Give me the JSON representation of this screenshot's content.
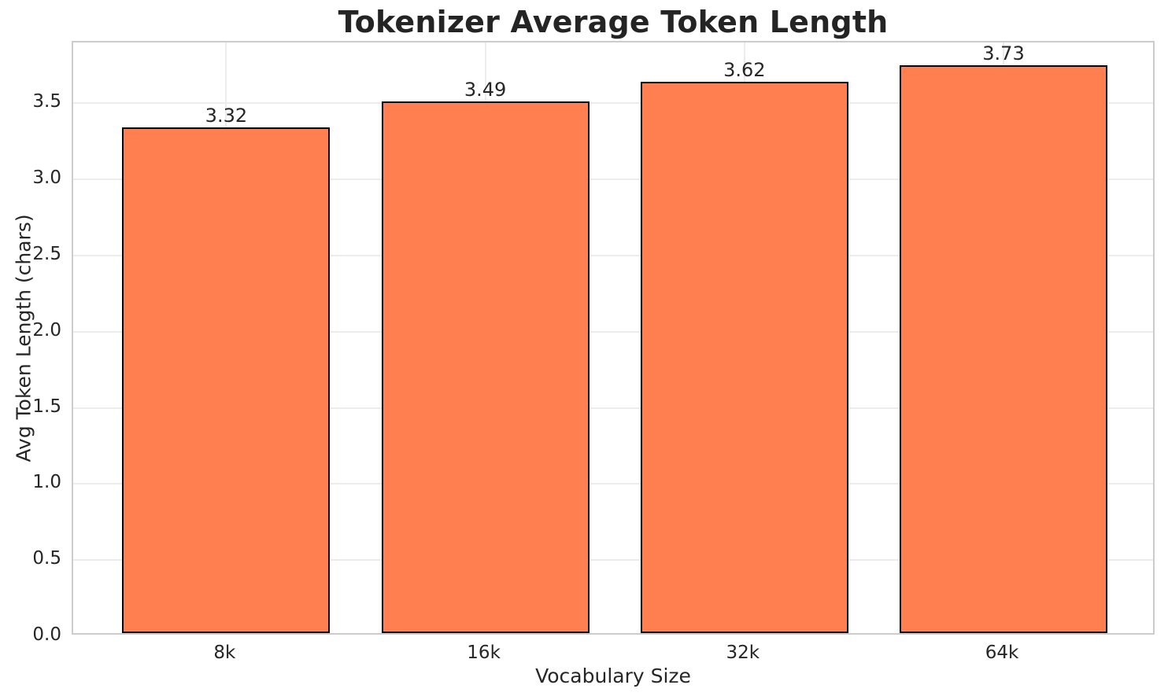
{
  "chart_data": {
    "type": "bar",
    "title": "Tokenizer Average Token Length",
    "xlabel": "Vocabulary Size",
    "ylabel": "Avg Token Length (chars)",
    "categories": [
      "8k",
      "16k",
      "32k",
      "64k"
    ],
    "values": [
      3.32,
      3.49,
      3.62,
      3.73
    ],
    "bar_value_labels": [
      "3.32",
      "3.49",
      "3.62",
      "3.73"
    ],
    "ylim": [
      0,
      3.9
    ],
    "yticks": [
      0.0,
      0.5,
      1.0,
      1.5,
      2.0,
      2.5,
      3.0,
      3.5
    ],
    "ytick_labels": [
      "0.0",
      "0.5",
      "1.0",
      "1.5",
      "2.0",
      "2.5",
      "3.0",
      "3.5"
    ],
    "grid": true,
    "legend": "none",
    "colors": {
      "bar_fill": "#FF7F50",
      "bar_edge": "#000000",
      "grid": "#ECECEC",
      "spine": "#CCCCCC",
      "text": "#262626",
      "title_text": "#242424",
      "background": "#FFFFFF"
    }
  }
}
